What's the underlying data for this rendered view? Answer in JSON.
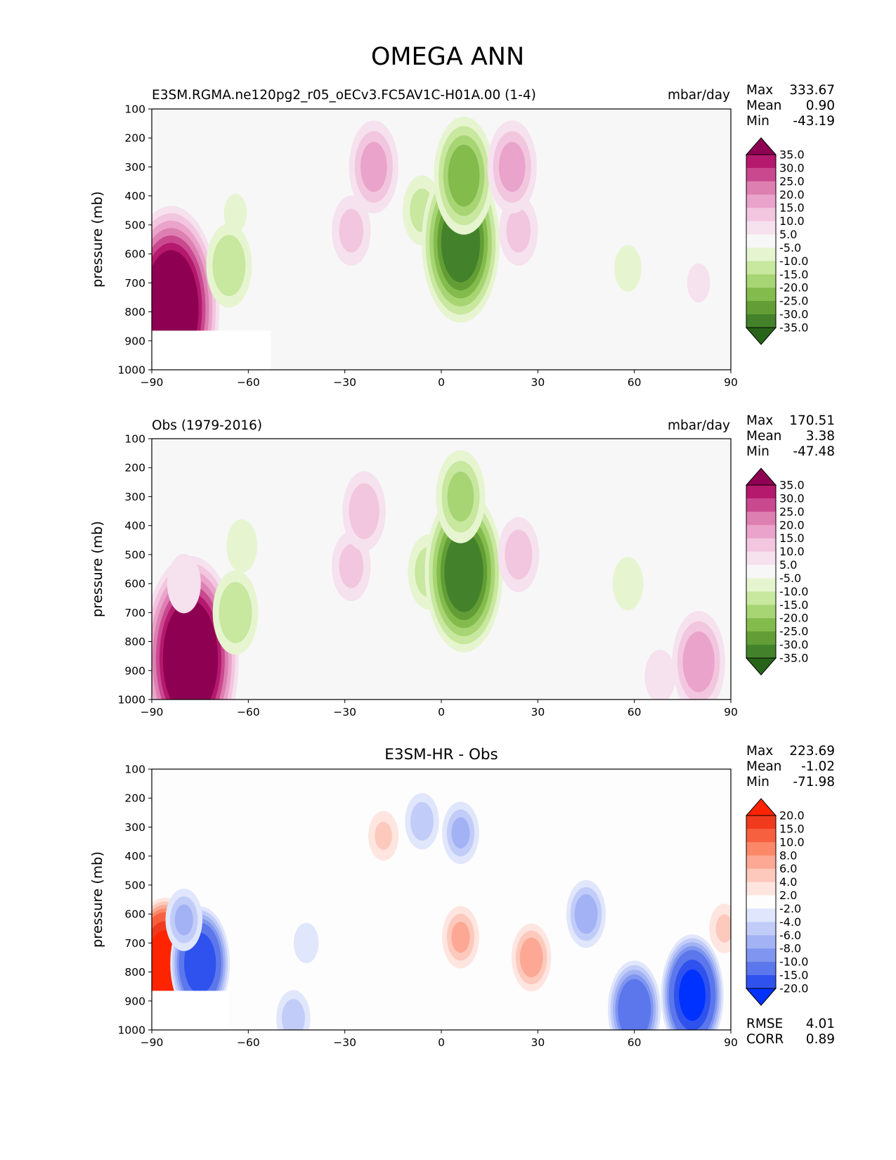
{
  "figure": {
    "title": "OMEGA ANN"
  },
  "colors": {
    "div_pos": [
      "#f6e1ee",
      "#f2c6de",
      "#eaa3ca",
      "#dd7fb1",
      "#c9498f",
      "#b4196d",
      "#8e0152"
    ],
    "div_neg": [
      "#e6f5d0",
      "#c8e79f",
      "#a8d574",
      "#83bc4d",
      "#629e35",
      "#43822a",
      "#276419"
    ],
    "neutral": "#f7f7f7",
    "diff_pos": [
      "#ffe5df",
      "#fcc9bc",
      "#fca894",
      "#fb8868",
      "#f7603f",
      "#f03a1e",
      "#ff2400"
    ],
    "diff_neg": [
      "#e0e6fb",
      "#c1ccf8",
      "#a2b2f4",
      "#7f95ef",
      "#5b77eb",
      "#2f52ee",
      "#0032ff"
    ],
    "diff_neutral": "#fdfdfd"
  },
  "colorbars": {
    "levels_main": [
      "35.0",
      "30.0",
      "25.0",
      "20.0",
      "15.0",
      "10.0",
      "5.0",
      "-5.0",
      "-10.0",
      "-15.0",
      "-20.0",
      "-25.0",
      "-30.0",
      "-35.0"
    ],
    "levels_diff": [
      "20.0",
      "15.0",
      "10.0",
      "8.0",
      "6.0",
      "4.0",
      "2.0",
      "-2.0",
      "-4.0",
      "-6.0",
      "-8.0",
      "-10.0",
      "-15.0",
      "-20.0"
    ]
  },
  "chart_data": [
    {
      "type": "heatmap",
      "title": "E3SM.RGMA.ne120pg2_r05_oECv3.FC5AV1C-H01A.00 (1-4)",
      "units": "mbar/day",
      "xlabel": "",
      "ylabel": "pressure (mb)",
      "xlim": [
        -90,
        90
      ],
      "ylim": [
        1000,
        100
      ],
      "xticks": [
        "−90",
        "−60",
        "−30",
        "0",
        "30",
        "60",
        "90"
      ],
      "yticks": [
        "100",
        "200",
        "300",
        "400",
        "500",
        "600",
        "700",
        "800",
        "900",
        "1000"
      ],
      "stats": {
        "max_label": "Max",
        "max": "333.67",
        "mean_label": "Mean",
        "mean": "0.90",
        "min_label": "Min",
        "min": "-43.19"
      },
      "missing_region": {
        "lat": [
          -90,
          -53
        ],
        "p_below": 865
      },
      "features": [
        {
          "lat": -84,
          "p": 790,
          "value": 45
        },
        {
          "lat": -66,
          "p": 640,
          "value": -14
        },
        {
          "lat": -64,
          "p": 460,
          "value": -6
        },
        {
          "lat": -28,
          "p": 520,
          "value": 11
        },
        {
          "lat": -21,
          "p": 300,
          "value": 16
        },
        {
          "lat": -6,
          "p": 450,
          "value": -11
        },
        {
          "lat": 6,
          "p": 560,
          "value": -33
        },
        {
          "lat": 7,
          "p": 330,
          "value": -22
        },
        {
          "lat": 24,
          "p": 520,
          "value": 11
        },
        {
          "lat": 22,
          "p": 300,
          "value": 16
        },
        {
          "lat": 58,
          "p": 650,
          "value": -7
        },
        {
          "lat": 80,
          "p": 700,
          "value": 6
        }
      ]
    },
    {
      "type": "heatmap",
      "title": "Obs (1979-2016)",
      "units": "mbar/day",
      "xlabel": "",
      "ylabel": "pressure (mb)",
      "xlim": [
        -90,
        90
      ],
      "ylim": [
        1000,
        100
      ],
      "xticks": [
        "−90",
        "−60",
        "−30",
        "0",
        "30",
        "60",
        "90"
      ],
      "yticks": [
        "100",
        "200",
        "300",
        "400",
        "500",
        "600",
        "700",
        "800",
        "900",
        "1000"
      ],
      "stats": {
        "max_label": "Max",
        "max": "170.51",
        "mean_label": "Mean",
        "mean": "3.38",
        "min_label": "Min",
        "min": "-47.48"
      },
      "features": [
        {
          "lat": -78,
          "p": 860,
          "value": 45
        },
        {
          "lat": -80,
          "p": 600,
          "value": 9
        },
        {
          "lat": -64,
          "p": 700,
          "value": -14
        },
        {
          "lat": -62,
          "p": 470,
          "value": -8
        },
        {
          "lat": -28,
          "p": 540,
          "value": 11
        },
        {
          "lat": -24,
          "p": 350,
          "value": 13
        },
        {
          "lat": -4,
          "p": 560,
          "value": -12
        },
        {
          "lat": 7,
          "p": 560,
          "value": -33
        },
        {
          "lat": 6,
          "p": 300,
          "value": -16
        },
        {
          "lat": 24,
          "p": 500,
          "value": 12
        },
        {
          "lat": 58,
          "p": 600,
          "value": -8
        },
        {
          "lat": 80,
          "p": 870,
          "value": 18
        },
        {
          "lat": 68,
          "p": 920,
          "value": 8
        }
      ]
    },
    {
      "type": "heatmap",
      "title": "E3SM-HR - Obs",
      "units": "",
      "xlabel": "",
      "ylabel": "pressure (mb)",
      "xlim": [
        -90,
        90
      ],
      "ylim": [
        1000,
        100
      ],
      "xticks": [
        "−90",
        "−60",
        "−30",
        "0",
        "30",
        "60",
        "90"
      ],
      "yticks": [
        "100",
        "200",
        "300",
        "400",
        "500",
        "600",
        "700",
        "800",
        "900",
        "1000"
      ],
      "stats": {
        "max_label": "Max",
        "max": "223.69",
        "mean_label": "Mean",
        "mean": "-1.02",
        "min_label": "Min",
        "min": "-71.98"
      },
      "metrics": {
        "rmse_label": "RMSE",
        "rmse": "4.01",
        "corr_label": "CORR",
        "corr": "0.89"
      },
      "missing_region": {
        "lat": [
          -90,
          -66
        ],
        "p_below": 865
      },
      "features": [
        {
          "lat": -86,
          "p": 780,
          "value": 24
        },
        {
          "lat": -75,
          "p": 770,
          "value": -18
        },
        {
          "lat": -80,
          "p": 620,
          "value": -6
        },
        {
          "lat": -42,
          "p": 700,
          "value": -3
        },
        {
          "lat": -46,
          "p": 960,
          "value": -5
        },
        {
          "lat": -18,
          "p": 330,
          "value": 4
        },
        {
          "lat": -6,
          "p": 280,
          "value": -5
        },
        {
          "lat": 6,
          "p": 680,
          "value": 6
        },
        {
          "lat": 6,
          "p": 320,
          "value": -6
        },
        {
          "lat": 28,
          "p": 750,
          "value": 7
        },
        {
          "lat": 45,
          "p": 600,
          "value": -7
        },
        {
          "lat": 60,
          "p": 930,
          "value": -14
        },
        {
          "lat": 78,
          "p": 880,
          "value": -20
        },
        {
          "lat": 88,
          "p": 650,
          "value": 4
        }
      ]
    }
  ]
}
